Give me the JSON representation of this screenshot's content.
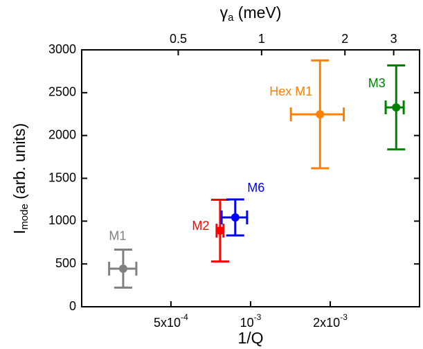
{
  "chart_data": {
    "type": "errorbar-scatter",
    "xlabel": "1/Q",
    "ylabel": {
      "main": "I",
      "sub": "mode",
      "rest": " (arb. units)"
    },
    "x2label": {
      "main": "γ",
      "sub": "a",
      "rest": " (meV)"
    },
    "xscale": "log",
    "x2scale": "log",
    "xlim": [
      0.00023,
      0.00435
    ],
    "x2lim": [
      0.224,
      3.72
    ],
    "ylim": [
      0,
      3000
    ],
    "xticks": [
      {
        "value": 0.0005,
        "label": "5x10",
        "exp": "-4"
      },
      {
        "value": 0.001,
        "label": "10",
        "exp": "-3"
      },
      {
        "value": 0.002,
        "label": "2x10",
        "exp": "-3"
      }
    ],
    "x2ticks": [
      0.5,
      1,
      2,
      3
    ],
    "yticks": [
      0,
      500,
      1000,
      1500,
      2000,
      2500,
      3000
    ],
    "series": [
      {
        "name": "M1",
        "color": "#808080",
        "x": [
          0.00033
        ],
        "x_low": [
          0.000292
        ],
        "x_high": [
          0.00037
        ],
        "values": [
          445
        ],
        "yerr": [
          222
        ]
      },
      {
        "name": "M2",
        "color": "#ff0000",
        "x": [
          0.000767
        ],
        "x_low": [
          0.000744
        ],
        "x_high": [
          0.00079
        ],
        "values": [
          889
        ],
        "yerr": [
          360
        ]
      },
      {
        "name": "M6",
        "color": "#0000ff",
        "x": [
          0.000875
        ],
        "x_low": [
          0.000777
        ],
        "x_high": [
          0.00097
        ],
        "values": [
          1043
        ],
        "yerr": [
          210
        ]
      },
      {
        "name": "Hex M1",
        "color": "#ff8000",
        "x": [
          0.00183
        ],
        "x_low": [
          0.00142
        ],
        "x_high": [
          0.00225
        ],
        "values": [
          2247
        ],
        "yerr": [
          630
        ]
      },
      {
        "name": "M3",
        "color": "#008000",
        "x": [
          0.00355
        ],
        "x_low": [
          0.00324
        ],
        "x_high": [
          0.00379
        ],
        "values": [
          2328
        ],
        "yerr": [
          490
        ]
      }
    ]
  }
}
